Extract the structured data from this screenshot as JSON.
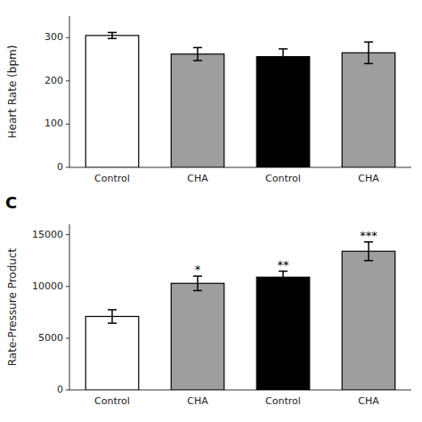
{
  "chart_data": [
    {
      "type": "bar",
      "y_label": "Heart Rate (bpm)",
      "categories": [
        "Control",
        "CHA",
        "Control",
        "CHA"
      ],
      "values": [
        305,
        262,
        256,
        265
      ],
      "errors": [
        7,
        15,
        18,
        25
      ],
      "colors": [
        "#ffffff",
        "#9e9e9e",
        "#000000",
        "#9e9e9e"
      ],
      "ylim": [
        0,
        350
      ],
      "yticks": [
        0,
        100,
        200,
        300
      ],
      "grid": false
    },
    {
      "type": "bar",
      "annotations": [
        "C"
      ],
      "y_label": "Rate-Pressure Product",
      "categories": [
        "Control",
        "CHA",
        "Control",
        "CHA"
      ],
      "values": [
        7100,
        10300,
        10900,
        13400
      ],
      "errors": [
        650,
        700,
        580,
        900
      ],
      "significance": [
        null,
        "*",
        "**",
        "***"
      ],
      "colors": [
        "#ffffff",
        "#9e9e9e",
        "#000000",
        "#9e9e9e"
      ],
      "ylim": [
        0,
        16000
      ],
      "yticks": [
        0,
        5000,
        10000,
        15000
      ],
      "grid": false
    }
  ]
}
